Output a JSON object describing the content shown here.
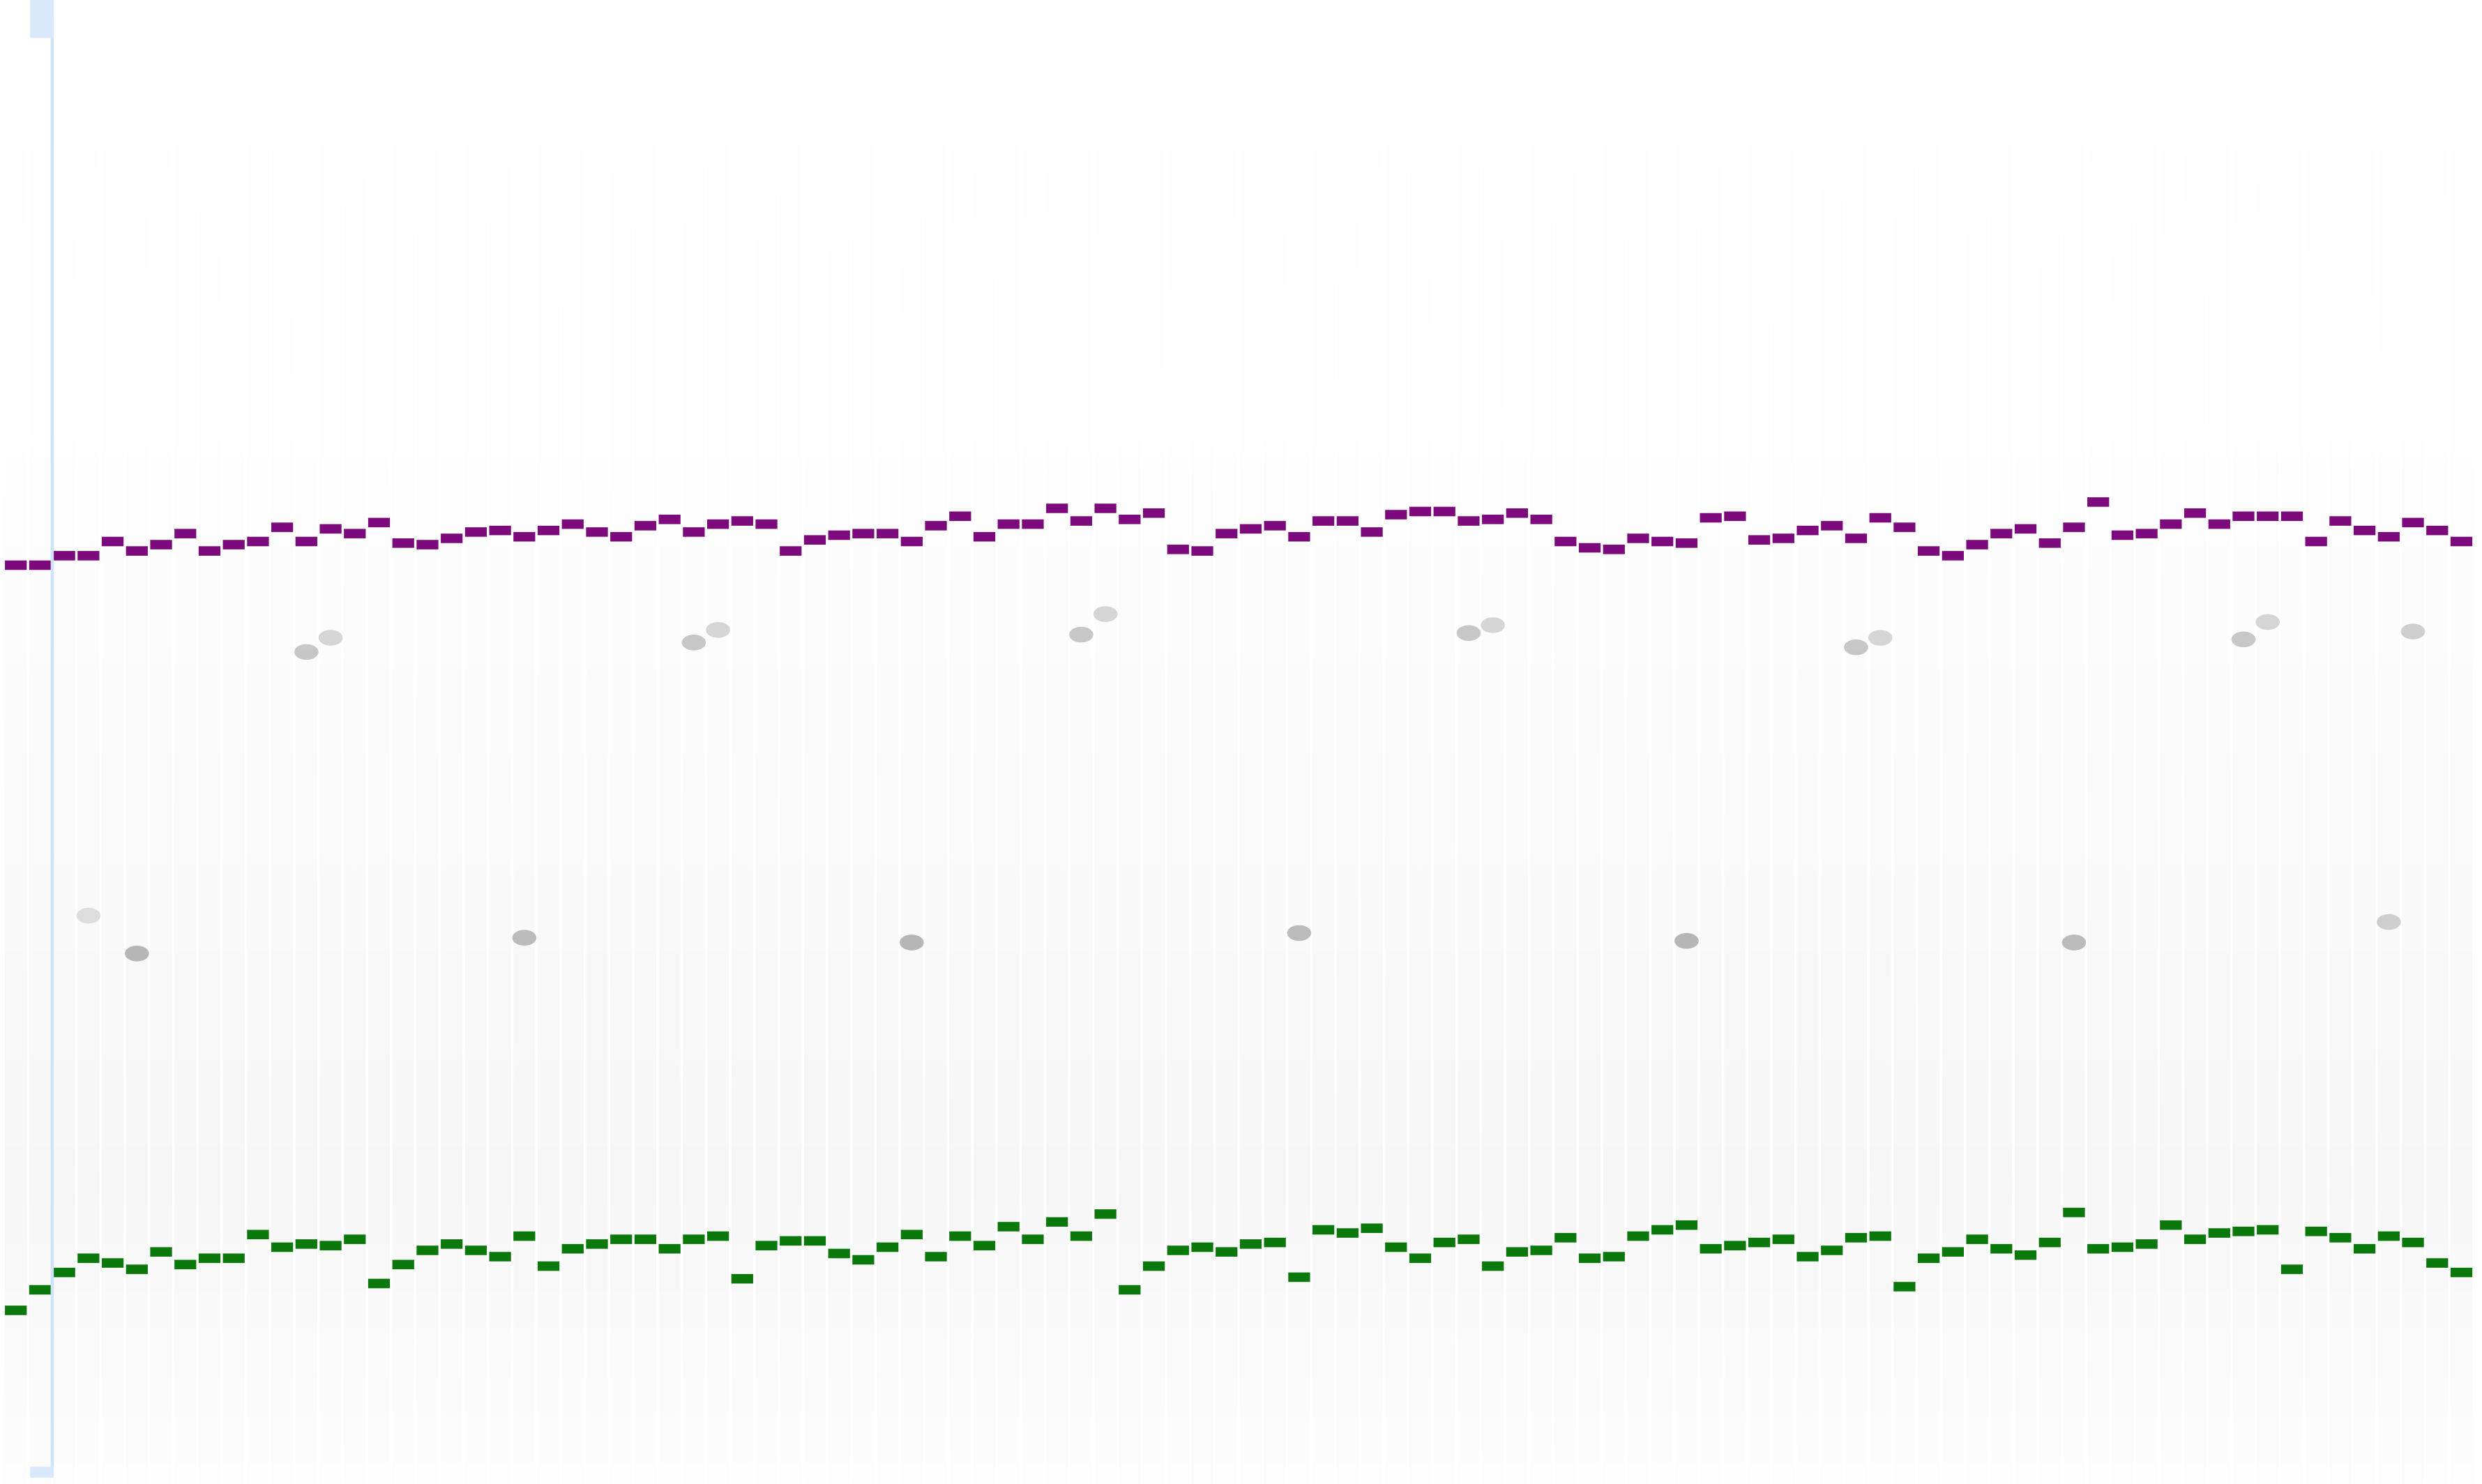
{
  "chart_data": {
    "type": "heatmap",
    "title": "",
    "xlabel": "",
    "ylabel": "",
    "x": [
      1,
      2,
      3,
      4,
      5,
      6,
      7,
      8,
      9,
      10,
      11,
      12,
      13,
      14,
      15,
      16,
      17,
      18,
      19,
      20,
      21,
      22,
      23,
      24,
      25,
      26,
      27,
      28,
      29,
      30,
      31,
      32,
      33,
      34,
      35,
      36,
      37,
      38,
      39,
      40,
      41,
      42,
      43,
      44,
      45,
      46,
      47,
      48,
      49,
      50,
      51,
      52,
      53,
      54,
      55,
      56,
      57,
      58,
      59,
      60,
      61,
      62,
      63,
      64,
      65,
      66,
      67,
      68,
      69,
      70,
      71,
      72,
      73,
      74,
      75,
      76,
      77,
      78,
      79,
      80,
      81,
      82,
      83,
      84,
      85,
      86,
      87,
      88,
      89,
      90,
      91,
      92,
      93,
      94,
      95,
      96,
      97,
      98,
      99,
      100,
      101,
      102
    ],
    "ylim": [
      0,
      940
    ],
    "colors": {
      "upper_marker": "#7d0a7d",
      "lower_marker": "#0a780a",
      "band": "#9a9a9a",
      "cursor": "#cfe3fa"
    },
    "series": [
      {
        "values": [
          358,
          358,
          352,
          352,
          343,
          349,
          345,
          338,
          349,
          345,
          343,
          334,
          343,
          335,
          338,
          331,
          344,
          345,
          341,
          337,
          336,
          340,
          336,
          332,
          337,
          340,
          333,
          329,
          337,
          332,
          330,
          332,
          349,
          342,
          339,
          338,
          338,
          343,
          333,
          327,
          340,
          332,
          332,
          322,
          330,
          322,
          329,
          325,
          348,
          349,
          338,
          335,
          333,
          340,
          330,
          330,
          337,
          326,
          324,
          324,
          330,
          329,
          325,
          329,
          343,
          347,
          348,
          341,
          343,
          344,
          328,
          327,
          342,
          341,
          336,
          333,
          341,
          328,
          334,
          349,
          352,
          345,
          338,
          335,
          344,
          334,
          318,
          339,
          338,
          332,
          325,
          332,
          327,
          327,
          327,
          343,
          330,
          336,
          340,
          331,
          336,
          343
        ]
      },
      {
        "values": [
          830,
          817,
          806,
          797,
          800,
          804,
          793,
          801,
          797,
          797,
          782,
          790,
          788,
          789,
          785,
          813,
          801,
          792,
          788,
          792,
          796,
          783,
          802,
          791,
          788,
          785,
          785,
          791,
          785,
          783,
          810,
          789,
          786,
          786,
          794,
          798,
          790,
          782,
          796,
          783,
          789,
          777,
          785,
          774,
          783,
          769,
          817,
          802,
          792,
          790,
          793,
          788,
          787,
          809,
          779,
          781,
          778,
          790,
          797,
          787,
          785,
          802,
          793,
          792,
          784,
          797,
          796,
          783,
          779,
          776,
          791,
          789,
          787,
          785,
          796,
          792,
          784,
          783,
          815,
          797,
          793,
          785,
          791,
          795,
          787,
          768,
          791,
          790,
          788,
          776,
          785,
          781,
          780,
          779,
          804,
          780,
          784,
          791,
          783,
          787,
          800,
          806
        ]
      }
    ],
    "bands": [
      {
        "x": 4,
        "y": 580,
        "intensity": 0.3
      },
      {
        "x": 6,
        "y": 604,
        "intensity": 0.7
      },
      {
        "x": 13,
        "y": 413,
        "intensity": 0.55
      },
      {
        "x": 14,
        "y": 404,
        "intensity": 0.4
      },
      {
        "x": 22,
        "y": 594,
        "intensity": 0.65
      },
      {
        "x": 29,
        "y": 407,
        "intensity": 0.55
      },
      {
        "x": 30,
        "y": 399,
        "intensity": 0.4
      },
      {
        "x": 38,
        "y": 597,
        "intensity": 0.7
      },
      {
        "x": 45,
        "y": 402,
        "intensity": 0.55
      },
      {
        "x": 46,
        "y": 389,
        "intensity": 0.4
      },
      {
        "x": 54,
        "y": 591,
        "intensity": 0.65
      },
      {
        "x": 61,
        "y": 401,
        "intensity": 0.55
      },
      {
        "x": 62,
        "y": 396,
        "intensity": 0.4
      },
      {
        "x": 70,
        "y": 596,
        "intensity": 0.7
      },
      {
        "x": 77,
        "y": 410,
        "intensity": 0.55
      },
      {
        "x": 78,
        "y": 404,
        "intensity": 0.4
      },
      {
        "x": 86,
        "y": 597,
        "intensity": 0.65
      },
      {
        "x": 93,
        "y": 405,
        "intensity": 0.55
      },
      {
        "x": 94,
        "y": 394,
        "intensity": 0.4
      },
      {
        "x": 99,
        "y": 584,
        "intensity": 0.45
      },
      {
        "x": 100,
        "y": 400,
        "intensity": 0.45
      }
    ]
  }
}
